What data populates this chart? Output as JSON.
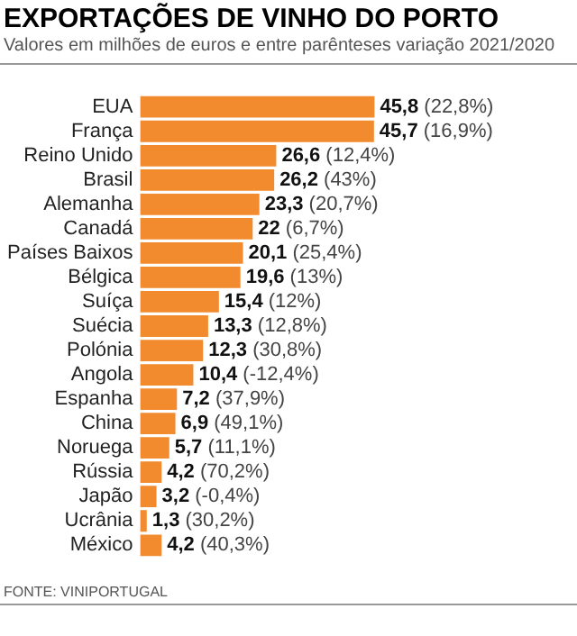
{
  "chart_data": {
    "type": "bar",
    "orientation": "horizontal",
    "title": "EXPORTAÇÕES DE VINHO DO PORTO",
    "subtitle": "Valores em milhões de euros e entre parênteses variação 2021/2020",
    "categories": [
      "EUA",
      "França",
      "Reino Unido",
      "Brasil",
      "Alemanha",
      "Canadá",
      "Países Baixos",
      "Bélgica",
      "Suíça",
      "Suécia",
      "Polónia",
      "Angola",
      "Espanha",
      "China",
      "Noruega",
      "Rússia",
      "Japão",
      "Ucrânia",
      "México"
    ],
    "values": [
      45.8,
      45.7,
      26.6,
      26.2,
      23.3,
      22,
      20.1,
      19.6,
      15.4,
      13.3,
      12.3,
      10.4,
      7.2,
      6.9,
      5.7,
      4.2,
      3.2,
      1.3,
      4.2
    ],
    "value_labels": [
      "45,8 (22,8%)",
      "45,7 (16,9%)",
      "26,6 (12,4%)",
      "26,2 (43%)",
      "23,3 (20,7%)",
      "22 (6,7%)",
      "20,1 (25,4%)",
      "19,6 (13%)",
      "15,4 (12%)",
      "13,3 (12,8%)",
      "12,3 (30,8%)",
      "10,4 (-12,4%)",
      "7,2 (37,9%)",
      "6,9 (49,1%)",
      "5,7 (11,1%)",
      "4,2 (70,2%)",
      "3,2 (-0,4%)",
      "1,3 (30,2%)",
      "4,2 (40,3%)"
    ],
    "color": "#f28a2e",
    "grid": false,
    "legend": false,
    "annotations": [
      "FONTE: VINIPORTUGAL"
    ]
  }
}
